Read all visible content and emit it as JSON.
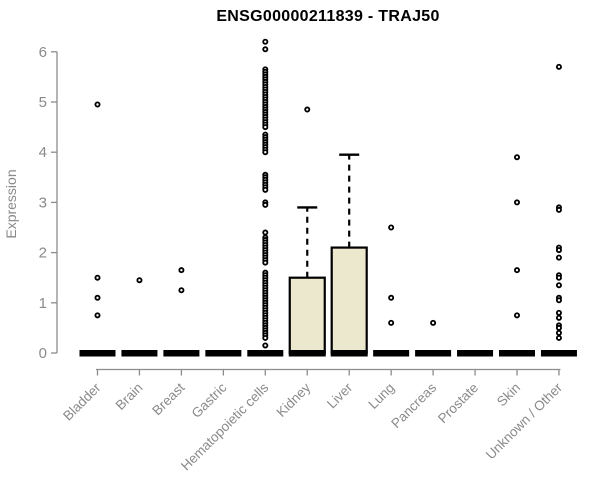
{
  "title": "ENSG00000211839 - TRAJ50",
  "chart_data": {
    "type": "boxplot",
    "title": "ENSG00000211839 - TRAJ50",
    "xlabel": "",
    "ylabel": "Expression",
    "ylim": [
      0,
      6
    ],
    "yticks": [
      0,
      1,
      2,
      3,
      4,
      5,
      6
    ],
    "grid": false,
    "legend": "none",
    "categories": [
      "Bladder",
      "Brain",
      "Breast",
      "Gastric",
      "Hematopoietic cells",
      "Kidney",
      "Liver",
      "Lung",
      "Pancreas",
      "Prostate",
      "Skin",
      "Unknown / Other"
    ],
    "colors": {
      "box_fill": "#ece8cd",
      "box_stroke": "#000000",
      "point": "#000000",
      "axis": "#8c8c8c",
      "tick_text": "#8a8a8a",
      "title_text": "#000000",
      "background": "#ffffff"
    },
    "series": [
      {
        "category": "Bladder",
        "box": {
          "low": 0,
          "q1": 0,
          "median": 0,
          "q3": 0,
          "high": 0
        },
        "points": [
          4.95,
          1.5,
          1.1,
          0.75
        ]
      },
      {
        "category": "Brain",
        "box": {
          "low": 0,
          "q1": 0,
          "median": 0,
          "q3": 0,
          "high": 0
        },
        "points": [
          1.45
        ]
      },
      {
        "category": "Breast",
        "box": {
          "low": 0,
          "q1": 0,
          "median": 0,
          "q3": 0,
          "high": 0
        },
        "points": [
          1.65,
          1.25
        ]
      },
      {
        "category": "Gastric",
        "box": {
          "low": 0,
          "q1": 0,
          "median": 0,
          "q3": 0,
          "high": 0
        },
        "points": []
      },
      {
        "category": "Hematopoietic cells",
        "box": {
          "low": 0,
          "q1": 0,
          "median": 0,
          "q3": 0,
          "high": 0
        },
        "points": [
          6.2,
          6.05,
          5.65,
          5.6,
          5.55,
          5.5,
          5.45,
          5.4,
          5.35,
          5.3,
          5.25,
          5.2,
          5.15,
          5.1,
          5.05,
          5.0,
          4.95,
          4.9,
          4.85,
          4.8,
          4.75,
          4.7,
          4.65,
          4.6,
          4.55,
          4.5,
          4.35,
          4.3,
          4.25,
          4.2,
          4.15,
          4.1,
          4.05,
          4.0,
          3.55,
          3.5,
          3.45,
          3.4,
          3.35,
          3.3,
          3.25,
          3.0,
          2.95,
          2.4,
          2.3,
          2.25,
          2.2,
          2.15,
          2.1,
          2.05,
          2.0,
          1.95,
          1.9,
          1.85,
          1.8,
          1.6,
          1.55,
          1.5,
          1.45,
          1.4,
          1.35,
          1.3,
          1.25,
          1.2,
          1.15,
          1.1,
          1.05,
          1.0,
          0.95,
          0.9,
          0.85,
          0.8,
          0.75,
          0.7,
          0.65,
          0.6,
          0.55,
          0.5,
          0.45,
          0.4,
          0.35,
          0.3,
          0.15
        ]
      },
      {
        "category": "Kidney",
        "box": {
          "low": 0,
          "q1": 0,
          "median": 0,
          "q3": 1.5,
          "high": 2.9
        },
        "points": [
          4.85
        ]
      },
      {
        "category": "Liver",
        "box": {
          "low": 0,
          "q1": 0,
          "median": 0,
          "q3": 2.1,
          "high": 3.95
        },
        "points": []
      },
      {
        "category": "Lung",
        "box": {
          "low": 0,
          "q1": 0,
          "median": 0,
          "q3": 0,
          "high": 0
        },
        "points": [
          2.5,
          1.1,
          0.6
        ]
      },
      {
        "category": "Pancreas",
        "box": {
          "low": 0,
          "q1": 0,
          "median": 0,
          "q3": 0,
          "high": 0
        },
        "points": [
          0.6
        ]
      },
      {
        "category": "Prostate",
        "box": {
          "low": 0,
          "q1": 0,
          "median": 0,
          "q3": 0,
          "high": 0
        },
        "points": []
      },
      {
        "category": "Skin",
        "box": {
          "low": 0,
          "q1": 0,
          "median": 0,
          "q3": 0,
          "high": 0
        },
        "points": [
          3.9,
          3.0,
          1.65,
          0.75
        ]
      },
      {
        "category": "Unknown / Other",
        "box": {
          "low": 0,
          "q1": 0,
          "median": 0,
          "q3": 0,
          "high": 0
        },
        "points": [
          5.7,
          2.9,
          2.85,
          2.1,
          2.05,
          1.9,
          1.55,
          1.5,
          1.35,
          1.1,
          1.05,
          0.8,
          0.7,
          0.55,
          0.5,
          0.4,
          0.3
        ]
      }
    ]
  }
}
